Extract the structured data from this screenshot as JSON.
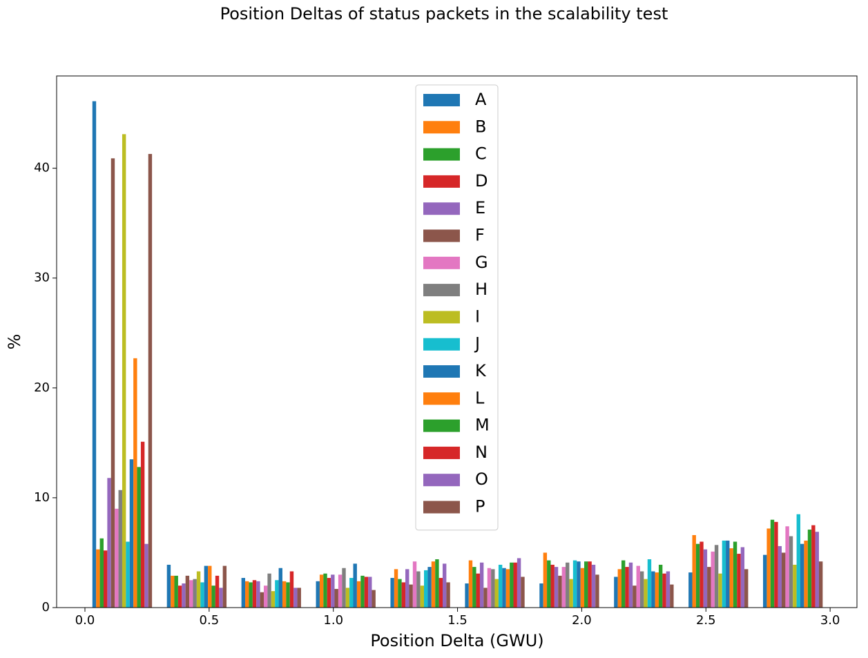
{
  "chart_data": {
    "type": "histogram",
    "title": "Position Deltas of status packets in the scalability test",
    "xlabel": "Position Delta (GWU)",
    "ylabel": "%",
    "bins": [
      0,
      0.3,
      0.6,
      0.9,
      1.2,
      1.5,
      1.8,
      2.1,
      2.4,
      2.7,
      3.0
    ],
    "series": [
      {
        "name": "A",
        "color": "#1f77b4",
        "values": [
          46.1,
          3.9,
          2.7,
          2.4,
          2.7,
          2.2,
          2.2,
          2.8,
          3.2,
          4.8
        ]
      },
      {
        "name": "B",
        "color": "#ff7f0e",
        "values": [
          5.3,
          2.9,
          2.4,
          3.0,
          3.5,
          4.3,
          5.0,
          3.5,
          6.6,
          7.2
        ]
      },
      {
        "name": "C",
        "color": "#2ca02c",
        "values": [
          6.3,
          2.9,
          2.3,
          3.1,
          2.6,
          3.7,
          4.3,
          4.3,
          5.8,
          8.0
        ]
      },
      {
        "name": "D",
        "color": "#d62728",
        "values": [
          5.2,
          2.0,
          2.5,
          2.7,
          2.3,
          3.1,
          3.9,
          3.7,
          6.0,
          7.8
        ]
      },
      {
        "name": "E",
        "color": "#9467bd",
        "values": [
          11.8,
          2.2,
          2.4,
          3.0,
          3.5,
          4.1,
          3.7,
          4.1,
          5.3,
          5.6
        ]
      },
      {
        "name": "F",
        "color": "#8c564b",
        "values": [
          40.9,
          2.9,
          1.4,
          1.7,
          2.1,
          1.8,
          2.9,
          2.0,
          3.7,
          5.0
        ]
      },
      {
        "name": "G",
        "color": "#e377c2",
        "values": [
          9.0,
          2.5,
          2.0,
          3.0,
          4.2,
          3.6,
          3.7,
          3.8,
          5.1,
          7.4
        ]
      },
      {
        "name": "H",
        "color": "#7f7f7f",
        "values": [
          10.7,
          2.6,
          3.1,
          3.6,
          3.3,
          3.5,
          4.1,
          3.3,
          5.7,
          6.5
        ]
      },
      {
        "name": "I",
        "color": "#bcbd22",
        "values": [
          43.1,
          3.3,
          1.5,
          1.8,
          2.0,
          2.6,
          2.6,
          2.6,
          3.1,
          3.9
        ]
      },
      {
        "name": "J",
        "color": "#17becf",
        "values": [
          6.0,
          2.3,
          2.5,
          2.7,
          3.4,
          3.9,
          4.3,
          4.4,
          6.1,
          8.5
        ]
      },
      {
        "name": "K",
        "color": "#1f77b4",
        "values": [
          13.5,
          3.8,
          3.6,
          4.0,
          3.7,
          3.6,
          4.2,
          3.3,
          6.1,
          5.8
        ]
      },
      {
        "name": "L",
        "color": "#ff7f0e",
        "values": [
          22.7,
          3.8,
          2.4,
          2.4,
          4.2,
          3.5,
          3.6,
          3.2,
          5.4,
          6.1
        ]
      },
      {
        "name": "M",
        "color": "#2ca02c",
        "values": [
          12.8,
          2.0,
          2.3,
          2.9,
          4.4,
          4.1,
          4.2,
          3.9,
          6.0,
          7.1
        ]
      },
      {
        "name": "N",
        "color": "#d62728",
        "values": [
          15.1,
          2.9,
          3.3,
          2.8,
          2.7,
          4.1,
          4.2,
          3.1,
          4.9,
          7.5
        ]
      },
      {
        "name": "O",
        "color": "#9467bd",
        "values": [
          5.8,
          1.8,
          1.8,
          2.8,
          4.0,
          4.5,
          3.9,
          3.3,
          5.5,
          6.9
        ]
      },
      {
        "name": "P",
        "color": "#8c564b",
        "values": [
          41.3,
          3.8,
          1.8,
          1.6,
          2.3,
          2.8,
          3.0,
          2.1,
          3.5,
          4.2
        ]
      }
    ],
    "xlim": [
      -0.114,
      3.108
    ],
    "ylim": [
      0,
      48.4
    ],
    "xticks": [
      {
        "value": 0,
        "label": "0.0"
      },
      0.5,
      {
        "value": 1,
        "label": "1.0"
      },
      1.5,
      {
        "value": 2,
        "label": "2.0"
      },
      2.5,
      {
        "value": 3,
        "label": "3.0"
      }
    ],
    "yticks": [
      0,
      10,
      20,
      30,
      40
    ],
    "legend": "upper center"
  }
}
